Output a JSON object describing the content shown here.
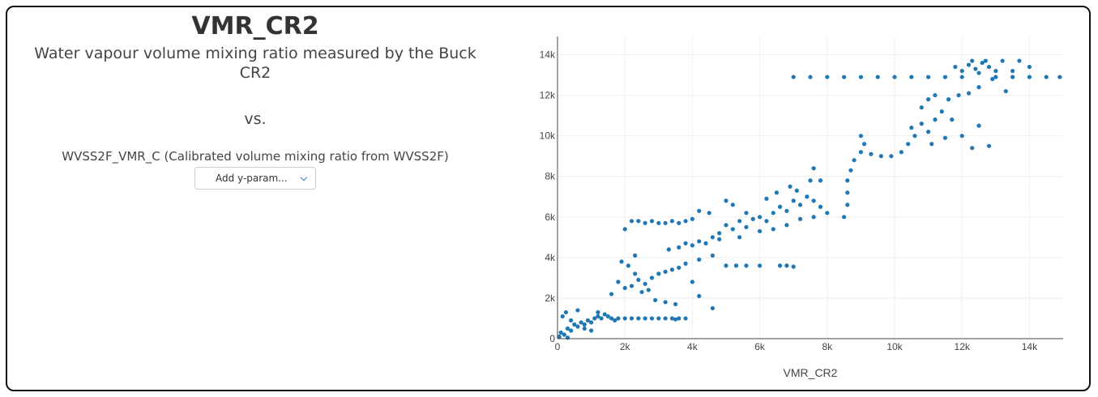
{
  "header": {
    "title": "VMR_CR2",
    "subtitle": "Water vapour volume mixing ratio measured by the Buck CR2",
    "vs": "vs.",
    "y_param": "WVSS2F_VMR_C (Calibrated volume mixing ratio from WVSS2F)",
    "dropdown_placeholder": "Add y-param...",
    "dropdown_icon": "chevron-down-icon"
  },
  "chart_data": {
    "type": "scatter",
    "xlabel": "VMR_CR2",
    "ylabel": "",
    "xlim": [
      0,
      15000
    ],
    "ylim": [
      0,
      14900
    ],
    "grid": true,
    "color": "#1f77b4",
    "xticks": [
      0,
      2000,
      4000,
      6000,
      8000,
      10000,
      12000,
      14000
    ],
    "xtick_labels": [
      "0",
      "2k",
      "4k",
      "6k",
      "8k",
      "10k",
      "12k",
      "14k"
    ],
    "yticks": [
      0,
      2000,
      4000,
      6000,
      8000,
      10000,
      12000,
      14000
    ],
    "ytick_labels": [
      "0",
      "2k",
      "4k",
      "6k",
      "8k",
      "10k",
      "12k",
      "14k"
    ],
    "points": [
      [
        50,
        100
      ],
      [
        100,
        300
      ],
      [
        200,
        200
      ],
      [
        300,
        500
      ],
      [
        400,
        400
      ],
      [
        500,
        700
      ],
      [
        600,
        600
      ],
      [
        700,
        800
      ],
      [
        800,
        700
      ],
      [
        900,
        900
      ],
      [
        1000,
        800
      ],
      [
        1100,
        1000
      ],
      [
        1200,
        1100
      ],
      [
        1300,
        1000
      ],
      [
        1400,
        1200
      ],
      [
        1500,
        1100
      ],
      [
        1600,
        1000
      ],
      [
        1700,
        900
      ],
      [
        150,
        1100
      ],
      [
        250,
        1300
      ],
      [
        600,
        1400
      ],
      [
        1200,
        1300
      ],
      [
        400,
        900
      ],
      [
        800,
        500
      ],
      [
        300,
        50
      ],
      [
        1000,
        400
      ],
      [
        1800,
        1000
      ],
      [
        2000,
        1000
      ],
      [
        2200,
        1000
      ],
      [
        2400,
        1000
      ],
      [
        2600,
        1000
      ],
      [
        2800,
        1000
      ],
      [
        3000,
        1000
      ],
      [
        3200,
        1000
      ],
      [
        3400,
        1000
      ],
      [
        3600,
        1000
      ],
      [
        3800,
        1000
      ],
      [
        3500,
        950
      ],
      [
        1600,
        2200
      ],
      [
        1800,
        2800
      ],
      [
        2000,
        2500
      ],
      [
        2200,
        2600
      ],
      [
        2400,
        2900
      ],
      [
        2600,
        2700
      ],
      [
        2800,
        3000
      ],
      [
        3000,
        3200
      ],
      [
        3200,
        3300
      ],
      [
        3400,
        3400
      ],
      [
        3600,
        3500
      ],
      [
        2300,
        3200
      ],
      [
        2500,
        2300
      ],
      [
        2700,
        2400
      ],
      [
        1900,
        3800
      ],
      [
        2100,
        3600
      ],
      [
        2300,
        4100
      ],
      [
        2900,
        1900
      ],
      [
        3200,
        1800
      ],
      [
        3500,
        1700
      ],
      [
        4600,
        1500
      ],
      [
        4200,
        2100
      ],
      [
        4000,
        2800
      ],
      [
        2000,
        5400
      ],
      [
        2200,
        5800
      ],
      [
        2400,
        5800
      ],
      [
        2600,
        5700
      ],
      [
        2800,
        5800
      ],
      [
        3000,
        5700
      ],
      [
        3200,
        5700
      ],
      [
        3400,
        5800
      ],
      [
        3600,
        5700
      ],
      [
        3800,
        5800
      ],
      [
        4000,
        5900
      ],
      [
        4200,
        6300
      ],
      [
        4500,
        6200
      ],
      [
        3300,
        4400
      ],
      [
        3600,
        4500
      ],
      [
        3800,
        4700
      ],
      [
        4000,
        4600
      ],
      [
        4200,
        4800
      ],
      [
        4400,
        4700
      ],
      [
        4600,
        5000
      ],
      [
        4800,
        4900
      ],
      [
        3800,
        3700
      ],
      [
        4200,
        3900
      ],
      [
        4600,
        4100
      ],
      [
        5000,
        3600
      ],
      [
        5300,
        3600
      ],
      [
        5600,
        3600
      ],
      [
        6000,
        3600
      ],
      [
        6600,
        3600
      ],
      [
        6800,
        3600
      ],
      [
        7000,
        3550
      ],
      [
        4800,
        5200
      ],
      [
        5000,
        5600
      ],
      [
        5200,
        5400
      ],
      [
        5400,
        5800
      ],
      [
        5600,
        5500
      ],
      [
        5800,
        5900
      ],
      [
        6000,
        6000
      ],
      [
        6200,
        5800
      ],
      [
        6400,
        6200
      ],
      [
        6600,
        6500
      ],
      [
        6800,
        6300
      ],
      [
        7000,
        6800
      ],
      [
        7200,
        6600
      ],
      [
        7400,
        7000
      ],
      [
        7600,
        6800
      ],
      [
        7800,
        6500
      ],
      [
        6500,
        7200
      ],
      [
        6900,
        7500
      ],
      [
        7100,
        7300
      ],
      [
        5600,
        6200
      ],
      [
        6000,
        5300
      ],
      [
        6400,
        5400
      ],
      [
        6800,
        5600
      ],
      [
        7200,
        5900
      ],
      [
        7600,
        6000
      ],
      [
        8000,
        6200
      ],
      [
        5200,
        6600
      ],
      [
        5000,
        6800
      ],
      [
        5400,
        5000
      ],
      [
        6200,
        6900
      ],
      [
        7600,
        8400
      ],
      [
        7800,
        7800
      ],
      [
        7500,
        7800
      ],
      [
        8500,
        6000
      ],
      [
        8600,
        6600
      ],
      [
        8600,
        7200
      ],
      [
        8600,
        7800
      ],
      [
        8700,
        8300
      ],
      [
        8800,
        8800
      ],
      [
        9000,
        9200
      ],
      [
        9100,
        9600
      ],
      [
        9000,
        10000
      ],
      [
        9300,
        9100
      ],
      [
        9600,
        9000
      ],
      [
        9900,
        9000
      ],
      [
        10200,
        9200
      ],
      [
        10400,
        9600
      ],
      [
        10600,
        10000
      ],
      [
        10800,
        10600
      ],
      [
        11000,
        10200
      ],
      [
        11200,
        10800
      ],
      [
        11400,
        11200
      ],
      [
        11600,
        11800
      ],
      [
        10800,
        11400
      ],
      [
        11000,
        11800
      ],
      [
        11200,
        12000
      ],
      [
        11700,
        10800
      ],
      [
        11900,
        12000
      ],
      [
        12200,
        12100
      ],
      [
        12500,
        12400
      ],
      [
        11100,
        9600
      ],
      [
        11500,
        9900
      ],
      [
        12300,
        9400
      ],
      [
        12800,
        9500
      ],
      [
        12500,
        10500
      ],
      [
        12000,
        10000
      ],
      [
        10500,
        10400
      ],
      [
        7000,
        12900
      ],
      [
        7500,
        12900
      ],
      [
        8000,
        12900
      ],
      [
        8500,
        12900
      ],
      [
        9000,
        12900
      ],
      [
        9500,
        12900
      ],
      [
        10000,
        12900
      ],
      [
        10500,
        12900
      ],
      [
        11000,
        12900
      ],
      [
        11500,
        12900
      ],
      [
        12000,
        12900
      ],
      [
        13000,
        12900
      ],
      [
        13500,
        12900
      ],
      [
        14000,
        12900
      ],
      [
        14500,
        12900
      ],
      [
        14900,
        12900
      ],
      [
        11800,
        13400
      ],
      [
        12000,
        13200
      ],
      [
        12200,
        13500
      ],
      [
        12400,
        13300
      ],
      [
        12600,
        13600
      ],
      [
        12800,
        13400
      ],
      [
        13000,
        13200
      ],
      [
        12300,
        13700
      ],
      [
        12700,
        13700
      ],
      [
        13200,
        13700
      ],
      [
        13700,
        13700
      ],
      [
        12500,
        13100
      ],
      [
        12900,
        12800
      ],
      [
        13500,
        13200
      ],
      [
        14000,
        13400
      ],
      [
        13300,
        12200
      ]
    ]
  }
}
